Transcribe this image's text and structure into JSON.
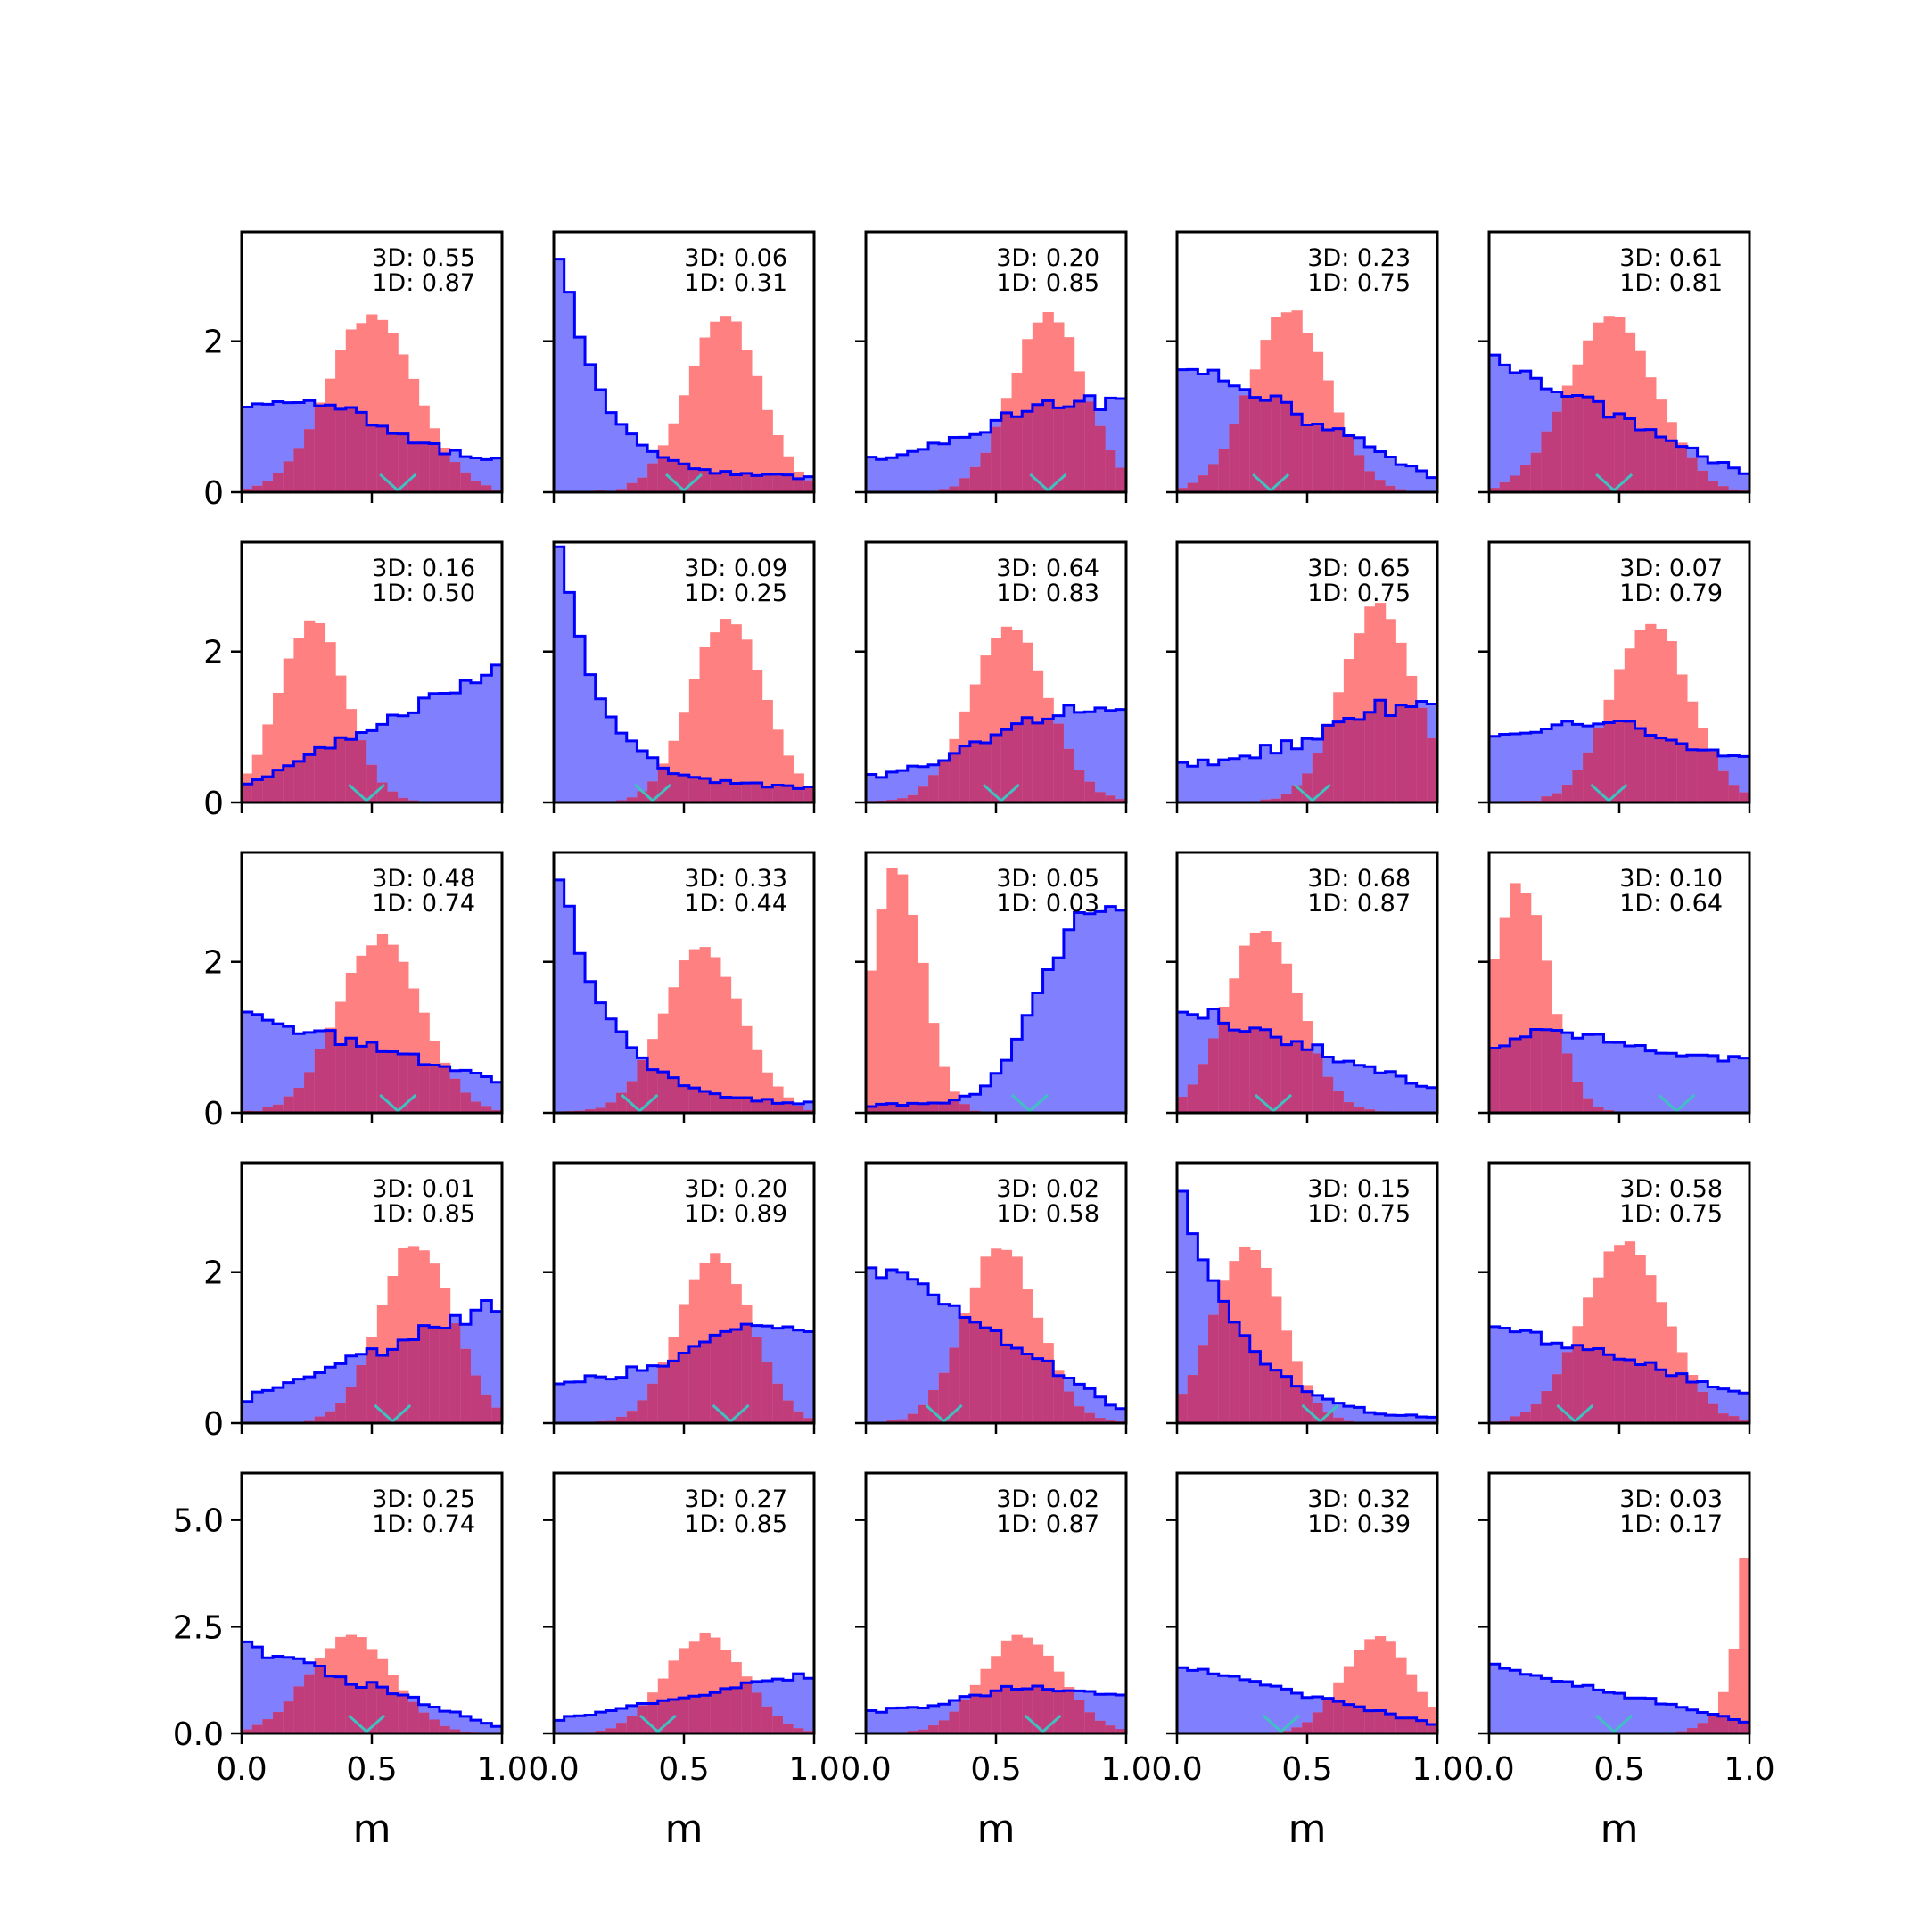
{
  "chart_data": {
    "type": "histogram-grid",
    "rows": 5,
    "cols": 5,
    "xlabel": "m",
    "xlim": [
      0.0,
      1.0
    ],
    "xticks": [
      0.0,
      0.5,
      1.0
    ],
    "xtick_labels": [
      "0.0",
      "0.5",
      "1.0"
    ],
    "row_yaxes": [
      {
        "ylim": [
          0,
          3.45
        ],
        "yticks": [
          0,
          2
        ],
        "ytick_labels": [
          "0",
          "2"
        ]
      },
      {
        "ylim": [
          0,
          3.45
        ],
        "yticks": [
          0,
          2
        ],
        "ytick_labels": [
          "0",
          "2"
        ]
      },
      {
        "ylim": [
          0,
          3.45
        ],
        "yticks": [
          0,
          2
        ],
        "ytick_labels": [
          "0",
          "2"
        ]
      },
      {
        "ylim": [
          0,
          3.45
        ],
        "yticks": [
          0,
          2
        ],
        "ytick_labels": [
          "0",
          "2"
        ]
      },
      {
        "ylim": [
          0,
          6.1
        ],
        "yticks": [
          0.0,
          2.5,
          5.0
        ],
        "ytick_labels": [
          "0.0",
          "2.5",
          "5.0"
        ]
      }
    ],
    "colors": {
      "blue_line": "#0000ff",
      "blue_fill": "#8080ff",
      "red_fill": "#ff8080",
      "overlap": "#c03c7a",
      "marker": "#40c0c0"
    },
    "panels": [
      {
        "annot_3d": "3D: 0.55",
        "annot_1d": "1D: 0.87",
        "marker": 0.6,
        "blue": {
          "type": "linear",
          "a": 1.15,
          "b": 0.5,
          "peak": 0.3,
          "noise": 0.07
        },
        "red": {
          "type": "gauss",
          "mu": 0.5,
          "sigma": 0.17,
          "amp": 2.35
        }
      },
      {
        "annot_3d": "3D: 0.06",
        "annot_1d": "1D: 0.31",
        "marker": 0.5,
        "blue": {
          "type": "exp",
          "a": 3.2,
          "rate": 6,
          "floor": 0.2,
          "noise": 0.05
        },
        "red": {
          "type": "gauss",
          "mu": 0.65,
          "sigma": 0.14,
          "amp": 2.35
        }
      },
      {
        "annot_3d": "3D: 0.20",
        "annot_1d": "1D: 0.85",
        "marker": 0.7,
        "blue": {
          "type": "linear",
          "a": 0.5,
          "b": 1.2,
          "peak": 0.72,
          "noise": 0.07
        },
        "red": {
          "type": "gauss",
          "mu": 0.7,
          "sigma": 0.14,
          "amp": 2.35
        }
      },
      {
        "annot_3d": "3D: 0.23",
        "annot_1d": "1D: 0.75",
        "marker": 0.36,
        "blue": {
          "type": "linear",
          "a": 1.75,
          "b": 0.2,
          "noise": 0.1
        },
        "red": {
          "type": "gauss",
          "mu": 0.43,
          "sigma": 0.15,
          "amp": 2.4
        }
      },
      {
        "annot_3d": "3D: 0.61",
        "annot_1d": "1D: 0.81",
        "marker": 0.48,
        "blue": {
          "type": "linear",
          "a": 1.8,
          "b": 0.2,
          "noise": 0.06
        },
        "red": {
          "type": "gauss",
          "mu": 0.47,
          "sigma": 0.17,
          "amp": 2.3
        }
      },
      {
        "annot_3d": "3D: 0.16",
        "annot_1d": "1D: 0.50",
        "marker": 0.48,
        "blue": {
          "type": "linear",
          "a": 0.2,
          "b": 1.8,
          "noise": 0.06
        },
        "red": {
          "type": "gauss",
          "mu": 0.27,
          "sigma": 0.13,
          "amp": 2.4
        }
      },
      {
        "annot_3d": "3D: 0.09",
        "annot_1d": "1D: 0.25",
        "marker": 0.38,
        "blue": {
          "type": "exp",
          "a": 3.3,
          "rate": 6,
          "floor": 0.2,
          "noise": 0.06
        },
        "red": {
          "type": "gauss",
          "mu": 0.67,
          "sigma": 0.14,
          "amp": 2.45
        }
      },
      {
        "annot_3d": "3D: 0.64",
        "annot_1d": "1D: 0.83",
        "marker": 0.52,
        "blue": {
          "type": "linear",
          "a": 0.4,
          "b": 1.3,
          "peak": 0.75,
          "noise": 0.08
        },
        "red": {
          "type": "gauss",
          "mu": 0.55,
          "sigma": 0.15,
          "amp": 2.3
        }
      },
      {
        "annot_3d": "3D: 0.65",
        "annot_1d": "1D: 0.75",
        "marker": 0.52,
        "blue": {
          "type": "linear",
          "a": 0.55,
          "b": 1.2,
          "peak": 0.8,
          "noise": 0.08
        },
        "red": {
          "type": "gauss",
          "mu": 0.77,
          "sigma": 0.14,
          "amp": 2.6
        }
      },
      {
        "annot_3d": "3D: 0.07",
        "annot_1d": "1D: 0.79",
        "marker": 0.46,
        "blue": {
          "type": "linear",
          "a": 1.0,
          "b": 0.7,
          "peak": 0.45,
          "noise": 0.06
        },
        "red": {
          "type": "gauss",
          "mu": 0.62,
          "sigma": 0.15,
          "amp": 2.4
        }
      },
      {
        "annot_3d": "3D: 0.48",
        "annot_1d": "1D: 0.74",
        "marker": 0.6,
        "blue": {
          "type": "linear",
          "a": 1.35,
          "b": 0.4,
          "noise": 0.08
        },
        "red": {
          "type": "gauss",
          "mu": 0.53,
          "sigma": 0.16,
          "amp": 2.3
        }
      },
      {
        "annot_3d": "3D: 0.33",
        "annot_1d": "1D: 0.44",
        "marker": 0.33,
        "blue": {
          "type": "exp",
          "a": 3.2,
          "rate": 5,
          "floor": 0.1,
          "noise": 0.05
        },
        "red": {
          "type": "gauss",
          "mu": 0.57,
          "sigma": 0.15,
          "amp": 2.2
        }
      },
      {
        "annot_3d": "3D: 0.05",
        "annot_1d": "1D: 0.03",
        "marker": 0.63,
        "blue": {
          "type": "sigmoid",
          "lo": 0.1,
          "hi": 2.85,
          "mid": 0.65,
          "k": 12,
          "noise": 0.05
        },
        "red": {
          "type": "gauss",
          "mu": 0.12,
          "sigma": 0.1,
          "amp": 3.2
        }
      },
      {
        "annot_3d": "3D: 0.68",
        "annot_1d": "1D: 0.87",
        "marker": 0.37,
        "blue": {
          "type": "linear",
          "a": 1.45,
          "b": 0.3,
          "noise": 0.08
        },
        "red": {
          "type": "gauss",
          "mu": 0.33,
          "sigma": 0.14,
          "amp": 2.45
        }
      },
      {
        "annot_3d": "3D: 0.10",
        "annot_1d": "1D: 0.64",
        "marker": 0.72,
        "blue": {
          "type": "linear",
          "a": 0.85,
          "b": 0.85,
          "peak": 0.3,
          "noise": 0.06
        },
        "red": {
          "type": "gauss",
          "mu": 0.12,
          "sigma": 0.11,
          "amp": 3.0
        }
      },
      {
        "annot_3d": "3D: 0.01",
        "annot_1d": "1D: 0.85",
        "marker": 0.58,
        "blue": {
          "type": "linear",
          "a": 0.3,
          "b": 1.6,
          "noise": 0.08
        },
        "red": {
          "type": "gauss",
          "mu": 0.67,
          "sigma": 0.14,
          "amp": 2.4
        }
      },
      {
        "annot_3d": "3D: 0.20",
        "annot_1d": "1D: 0.89",
        "marker": 0.68,
        "blue": {
          "type": "linear",
          "a": 0.6,
          "b": 1.2,
          "peak": 0.75,
          "noise": 0.06
        },
        "red": {
          "type": "gauss",
          "mu": 0.62,
          "sigma": 0.14,
          "amp": 2.25
        }
      },
      {
        "annot_3d": "3D: 0.02",
        "annot_1d": "1D: 0.58",
        "marker": 0.3,
        "blue": {
          "type": "linear",
          "a": 2.2,
          "b": 0.15,
          "noise": 0.08
        },
        "red": {
          "type": "gauss",
          "mu": 0.52,
          "sigma": 0.14,
          "amp": 2.35
        }
      },
      {
        "annot_3d": "3D: 0.15",
        "annot_1d": "1D: 0.75",
        "marker": 0.55,
        "blue": {
          "type": "exp",
          "a": 3.0,
          "rate": 4,
          "floor": 0.0,
          "noise": 0.05
        },
        "red": {
          "type": "gauss",
          "mu": 0.27,
          "sigma": 0.13,
          "amp": 2.35
        }
      },
      {
        "annot_3d": "3D: 0.58",
        "annot_1d": "1D: 0.75",
        "marker": 0.33,
        "blue": {
          "type": "linear",
          "a": 1.35,
          "b": 0.4,
          "noise": 0.07
        },
        "red": {
          "type": "gauss",
          "mu": 0.52,
          "sigma": 0.16,
          "amp": 2.4
        }
      },
      {
        "annot_3d": "3D: 0.25",
        "annot_1d": "1D: 0.74",
        "marker": 0.48,
        "blue": {
          "type": "linear",
          "a": 2.1,
          "b": 0.1,
          "noise": 0.08
        },
        "red": {
          "type": "gauss",
          "mu": 0.42,
          "sigma": 0.16,
          "amp": 2.3
        }
      },
      {
        "annot_3d": "3D: 0.27",
        "annot_1d": "1D: 0.85",
        "marker": 0.4,
        "blue": {
          "type": "linear",
          "a": 0.3,
          "b": 1.4,
          "noise": 0.06
        },
        "red": {
          "type": "gauss",
          "mu": 0.58,
          "sigma": 0.15,
          "amp": 2.3
        }
      },
      {
        "annot_3d": "3D: 0.02",
        "annot_1d": "1D: 0.87",
        "marker": 0.68,
        "blue": {
          "type": "linear",
          "a": 0.6,
          "b": 1.0,
          "peak": 0.6,
          "noise": 0.05
        },
        "red": {
          "type": "gauss",
          "mu": 0.6,
          "sigma": 0.15,
          "amp": 2.3
        }
      },
      {
        "annot_3d": "3D: 0.32",
        "annot_1d": "1D: 0.39",
        "marker": 0.4,
        "blue": {
          "type": "linear",
          "a": 1.6,
          "b": 0.2,
          "noise": 0.05
        },
        "red": {
          "type": "gauss",
          "mu": 0.77,
          "sigma": 0.13,
          "amp": 2.3
        }
      },
      {
        "annot_3d": "3D: 0.03",
        "annot_1d": "1D: 0.17",
        "marker": 0.48,
        "blue": {
          "type": "linear",
          "a": 1.6,
          "b": 0.25,
          "noise": 0.05
        },
        "red": {
          "type": "exprise",
          "amp": 5.9,
          "rate": 18
        }
      }
    ]
  }
}
